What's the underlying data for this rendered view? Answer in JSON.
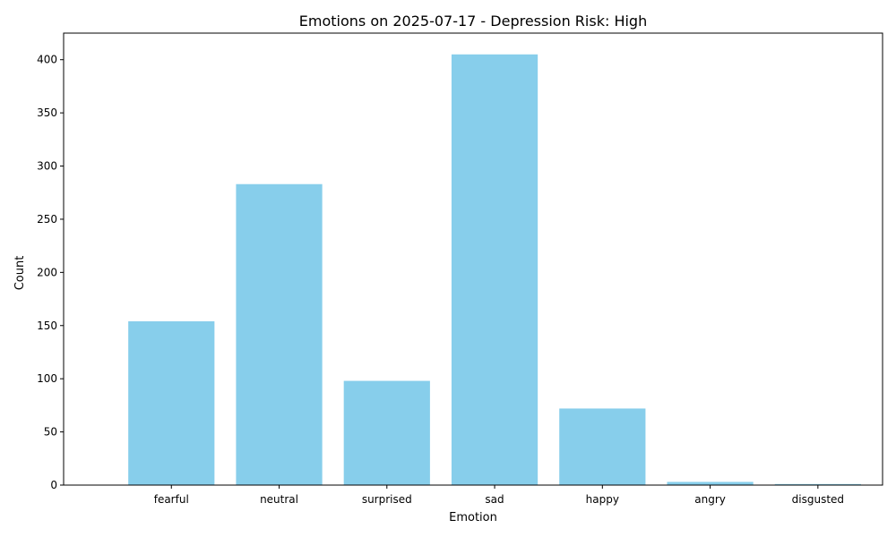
{
  "chart_data": {
    "type": "bar",
    "title": "Emotions on 2025-07-17 - Depression Risk: High",
    "xlabel": "Emotion",
    "ylabel": "Count",
    "categories": [
      "fearful",
      "neutral",
      "surprised",
      "sad",
      "happy",
      "angry",
      "disgusted"
    ],
    "values": [
      154,
      283,
      98,
      405,
      72,
      3,
      1
    ],
    "ylim": [
      0,
      425
    ],
    "yticks": [
      0,
      50,
      100,
      150,
      200,
      250,
      300,
      350,
      400
    ],
    "bar_color": "#87ceeb",
    "grid": false,
    "legend": "none"
  }
}
